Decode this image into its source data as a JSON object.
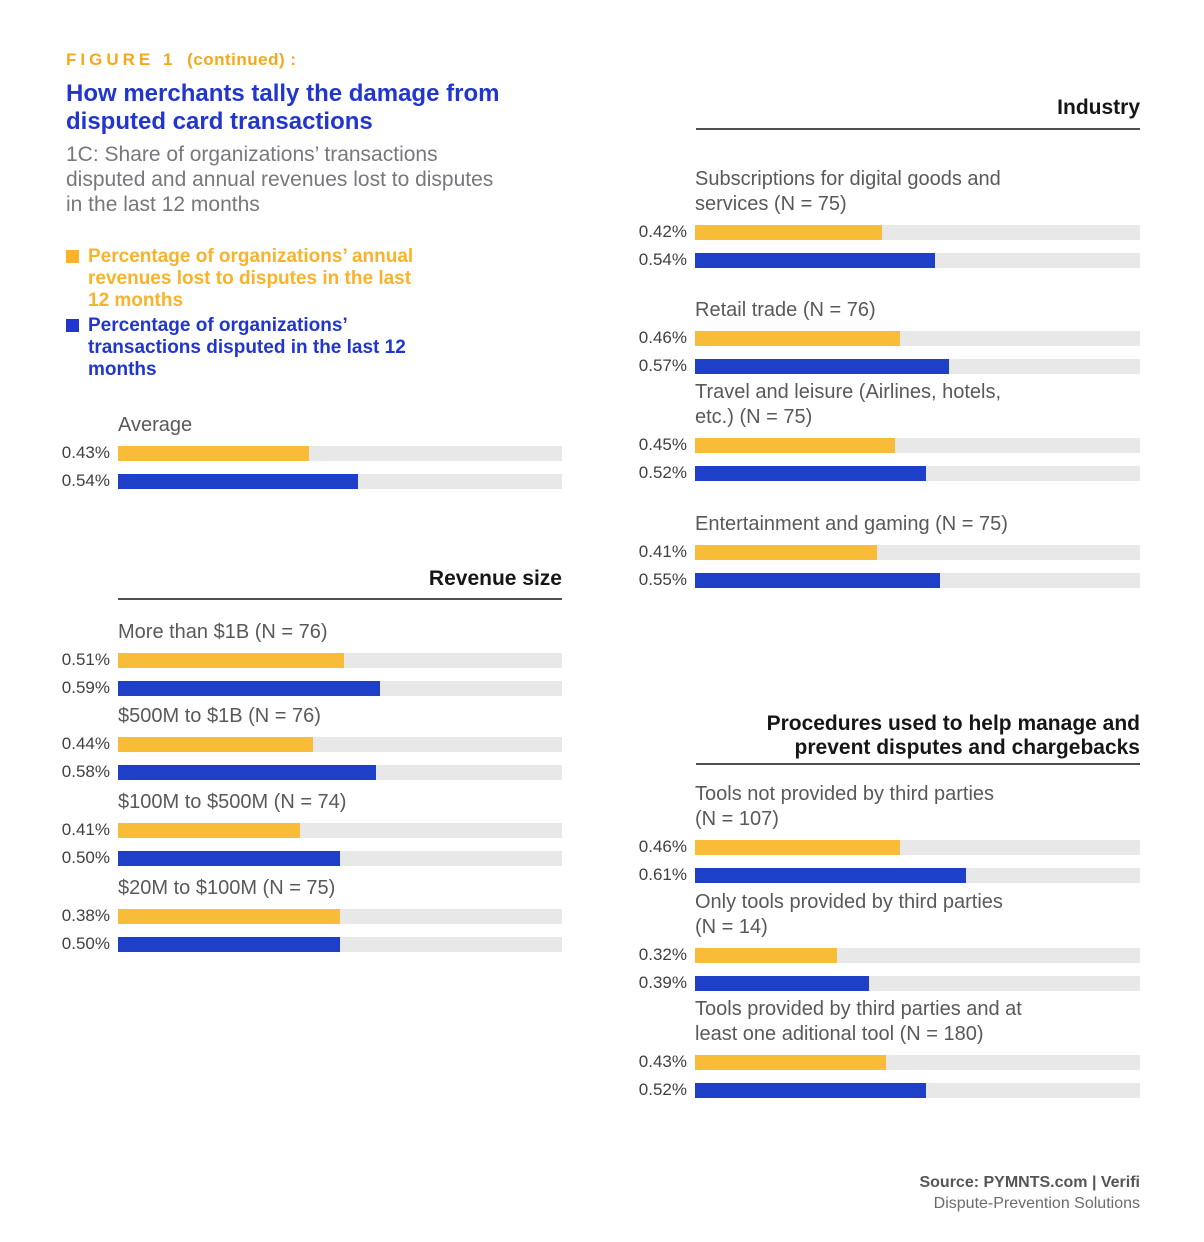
{
  "figure": {
    "tag": "FIGURE 1",
    "tag_suffix": "(continued) :",
    "title": "How merchants tally the damage from\ndisputed card transactions",
    "subtitle": "1C: Share of organizations’ transactions\ndisputed and annual revenues lost to disputes\nin the last 12 months"
  },
  "legend": {
    "items": [
      {
        "label": "Percentage of organizations’ annual\nrevenues lost to disputes in the last\n12 months",
        "color": "#F9B32B"
      },
      {
        "label": "Percentage of organizations’\ntransactions disputed in the last 12\nmonths",
        "color": "#2136CE"
      }
    ]
  },
  "chart_data": {
    "type": "bar",
    "orientation": "horizontal",
    "unit": "percent",
    "value_format": "0.00%",
    "xlim": [
      0,
      1.0
    ],
    "track_color": "#E8E8E8",
    "series": [
      {
        "name": "Percentage of organizations’ annual revenues lost to disputes in the last 12 months",
        "color": "#F8BC39"
      },
      {
        "name": "Percentage of organizations’ transactions disputed in the last 12 months",
        "color": "#1E3FC8"
      }
    ],
    "sections": [
      {
        "header": "",
        "items": [
          {
            "label": "Average",
            "values": [
              0.43,
              0.54
            ]
          }
        ]
      },
      {
        "header": "Revenue size",
        "items": [
          {
            "label": "More than $1B (N = 76)",
            "values": [
              0.51,
              0.59
            ]
          },
          {
            "label": "$500M to $1B (N = 76)",
            "values": [
              0.44,
              0.58
            ]
          },
          {
            "label": "$100M to $500M (N = 74)",
            "values": [
              0.41,
              0.5
            ]
          },
          {
            "label": "$20M to $100M (N = 75)",
            "values": [
              0.38,
              0.5
            ],
            "fills": [
              50,
              50
            ]
          }
        ]
      },
      {
        "header": "Industry",
        "items": [
          {
            "label": "Subscriptions for digital goods and\nservices (N = 75)",
            "values": [
              0.42,
              0.54
            ]
          },
          {
            "label": "Retail trade (N = 76)",
            "values": [
              0.46,
              0.57
            ]
          },
          {
            "label": "Travel and leisure (Airlines, hotels,\netc.) (N = 75)",
            "values": [
              0.45,
              0.52
            ]
          },
          {
            "label": "Entertainment and gaming (N = 75)",
            "values": [
              0.41,
              0.55
            ]
          }
        ]
      },
      {
        "header": "Procedures used to help manage and\nprevent disputes and chargebacks",
        "items": [
          {
            "label": "Tools not provided by third parties\n(N = 107)",
            "values": [
              0.46,
              0.61
            ]
          },
          {
            "label": "Only tools provided by third parties\n(N = 14)",
            "values": [
              0.32,
              0.39
            ]
          },
          {
            "label": "Tools provided by third parties and at\nleast one aditional tool (N = 180)",
            "values": [
              0.43,
              0.52
            ]
          }
        ]
      }
    ]
  },
  "footer": {
    "source_line": "Source: PYMNTS.com  |  Verifi",
    "subline": "Dispute-Prevention Solutions"
  }
}
